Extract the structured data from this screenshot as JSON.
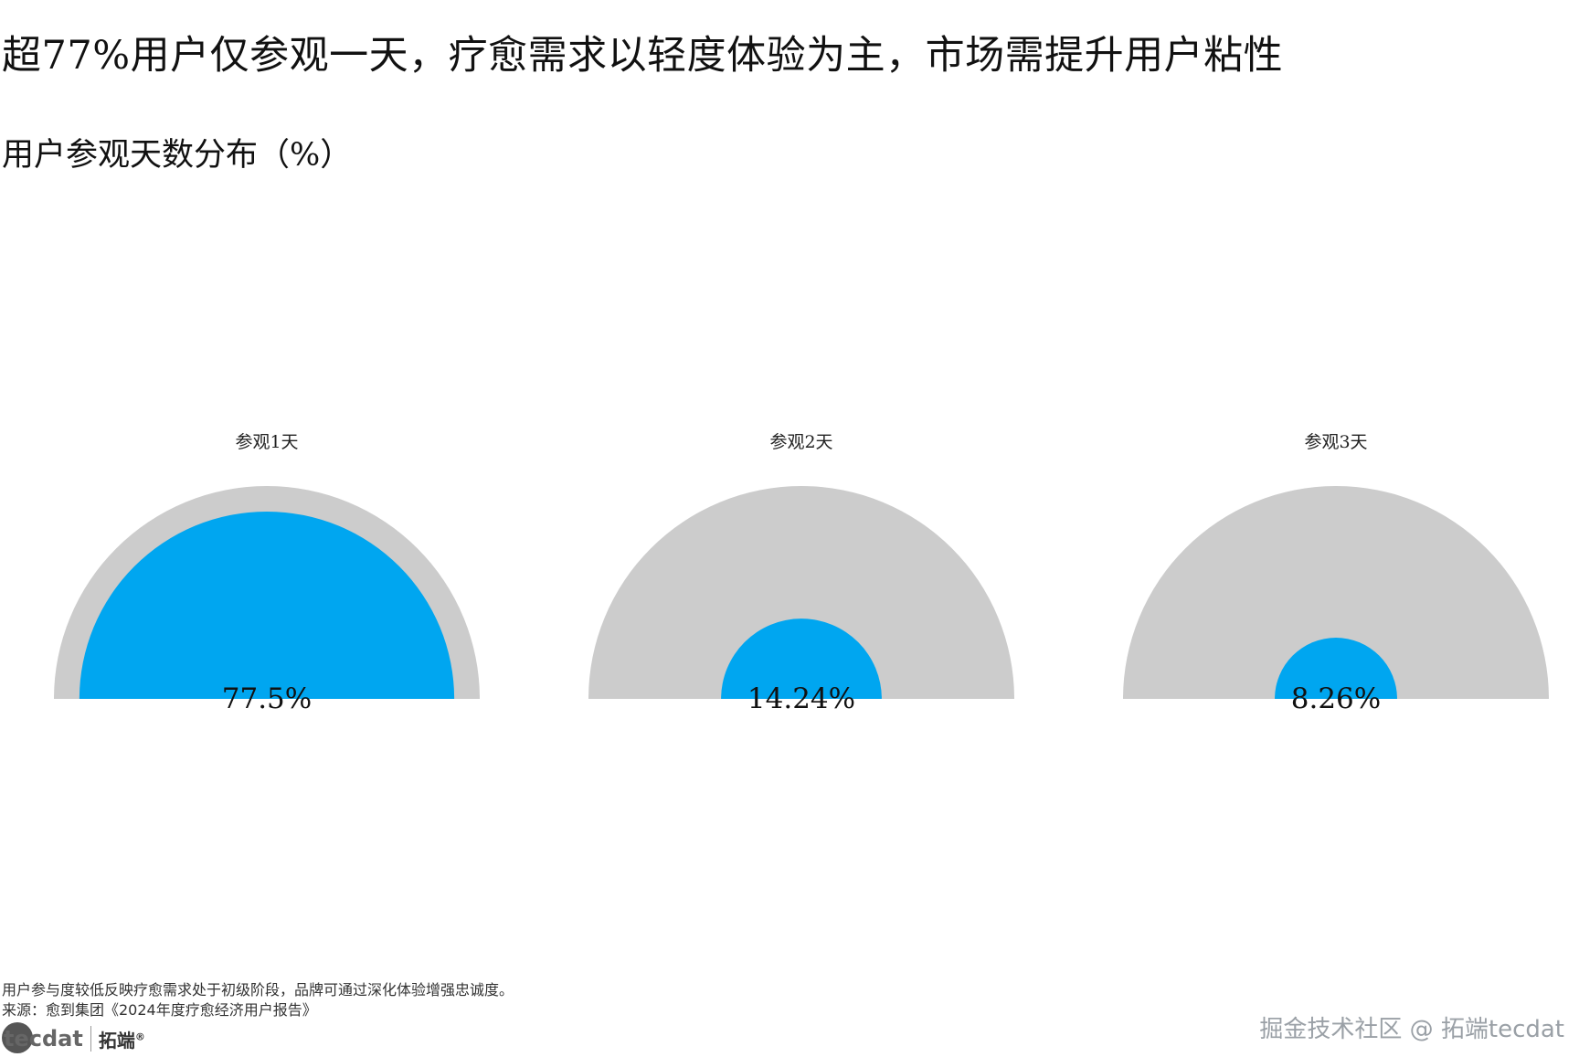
{
  "page": {
    "title": "超77%用户仅参观一天，疗愈需求以轻度体验为主，市场需提升用户粘性",
    "subtitle": "用户参观天数分布（%）",
    "note": "用户参与度较低反映疗愈需求处于初级阶段，品牌可通过深化体验增强忠诚度。",
    "source": "来源：愈到集团《2024年度疗愈经济用户报告》",
    "logo_text": "tecdat",
    "logo_cn": "拓端",
    "logo_mark": "®",
    "watermark": "掘金技术社区 @ 拓端tecdat"
  },
  "colors": {
    "value_fill": "#00a6f0",
    "background_fill": "#cccccc"
  },
  "chart_data": {
    "type": "pie",
    "subtype": "semicircle-radial",
    "unit": "%",
    "max": 100,
    "items": [
      {
        "label": "参观1天",
        "value": 77.5,
        "value_label": "77.5%"
      },
      {
        "label": "参观2天",
        "value": 14.24,
        "value_label": "14.24%"
      },
      {
        "label": "参观3天",
        "value": 8.26,
        "value_label": "8.26%"
      }
    ]
  }
}
